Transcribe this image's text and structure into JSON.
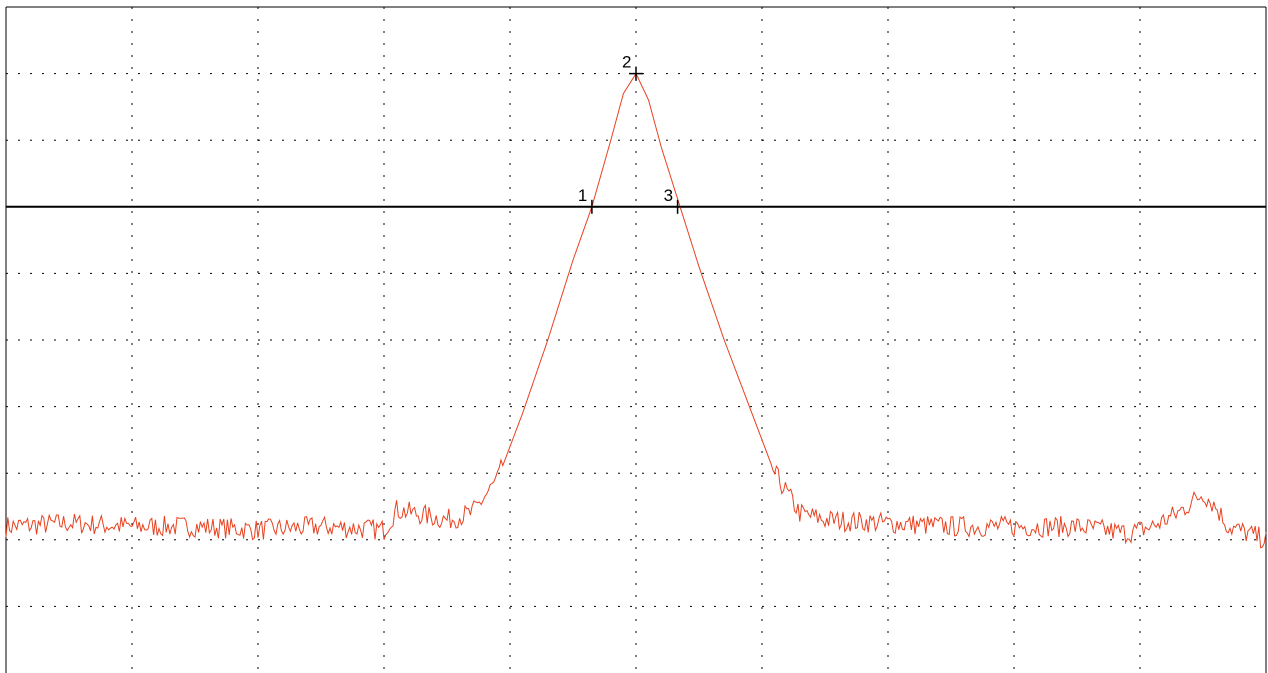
{
  "chart_data": {
    "type": "line",
    "title": "",
    "xlabel": "",
    "ylabel": "",
    "xlim": [
      0,
      10
    ],
    "ylim": [
      -10,
      0
    ],
    "grid": true,
    "reference_level": -3,
    "colors": {
      "trace": "#e8411f",
      "grid": "#000000",
      "reference": "#000000"
    },
    "series": [
      {
        "x": [
          0,
          0.5,
          1.0,
          1.5,
          2.0,
          2.5,
          3.0,
          3.1,
          3.5,
          3.7,
          3.9,
          4.1,
          4.3,
          4.5,
          4.65,
          4.8,
          4.9,
          5.0,
          5.1,
          5.2,
          5.35,
          5.5,
          5.7,
          5.9,
          6.1,
          6.3,
          6.5,
          7.0,
          7.5,
          8.0,
          8.5,
          8.9,
          9.1,
          9.3,
          9.5,
          9.6,
          9.7,
          9.85,
          10.0
        ],
        "y": [
          -7.8,
          -7.75,
          -7.8,
          -7.8,
          -7.85,
          -7.8,
          -7.85,
          -7.55,
          -7.7,
          -7.6,
          -7.1,
          -6.1,
          -5.0,
          -3.8,
          -3.0,
          -2.0,
          -1.3,
          -1.0,
          -1.4,
          -2.1,
          -3.0,
          -3.9,
          -5.0,
          -6.0,
          -7.0,
          -7.6,
          -7.7,
          -7.75,
          -7.8,
          -7.8,
          -7.8,
          -7.9,
          -7.8,
          -7.6,
          -7.3,
          -7.5,
          -7.8,
          -7.9,
          -8.0
        ]
      }
    ],
    "markers": [
      {
        "label": "1",
        "x": 4.65,
        "y": -3.0
      },
      {
        "label": "2",
        "x": 5.0,
        "y": -1.0
      },
      {
        "label": "3",
        "x": 5.33,
        "y": -3.0
      }
    ]
  }
}
